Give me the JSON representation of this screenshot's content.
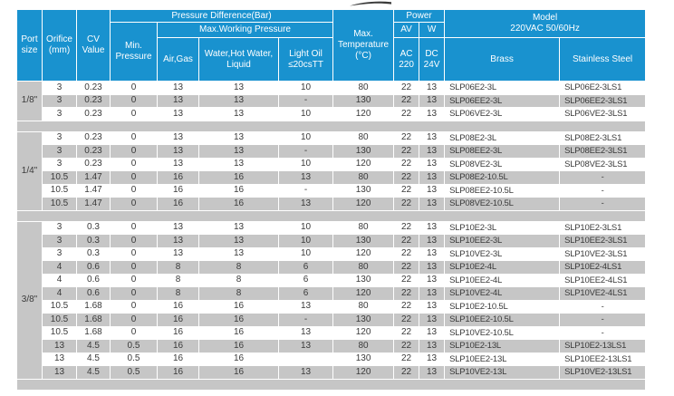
{
  "colors": {
    "header_blue": "#1992cf",
    "stripe_gray": "#c6c6c6",
    "body_text": "#3a3a3a",
    "grid_white": "#ffffff"
  },
  "decoration": {
    "top_partial_graphic": "cropped-logo-swoosh"
  },
  "table": {
    "header": {
      "port_size": "Port\nsize",
      "orifice": "Orifice\n(mm)",
      "cv_value": "CV\nValue",
      "pressure_difference": "Pressure Difference(Bar)",
      "max_working_pressure": "Max.Working Pressure",
      "min_pressure": "Min.\nPressure",
      "air_gas": "Air,Gas",
      "water": "Water,Hot Water,\nLiquid",
      "light_oil": "Light Oil\n≤20csTT",
      "max_temperature": "Max.\nTemperature\n(°C)",
      "power": "Power",
      "power_av": "AV",
      "power_w": "W",
      "ac_220": "AC\n220",
      "dc_24v": "DC\n24V",
      "model": "Model\n220VAC 50/60Hz",
      "brass": "Brass",
      "stainless_steel": "Stainless Steel"
    },
    "groups": [
      {
        "port_size": "1/8\"",
        "rows": [
          {
            "orifice": "3",
            "cv": "0.23",
            "min_pressure": "0",
            "air_gas": "13",
            "water": "13",
            "light_oil": "10",
            "max_temp": "80",
            "ac": "22",
            "dc": "13",
            "brass": "SLP06E2-3L",
            "stainless": "SLP06E2-3LS1"
          },
          {
            "orifice": "3",
            "cv": "0.23",
            "min_pressure": "0",
            "air_gas": "13",
            "water": "13",
            "light_oil": "-",
            "max_temp": "130",
            "ac": "22",
            "dc": "13",
            "brass": "SLP06EE2-3L",
            "stainless": "SLP06EE2-3LS1"
          },
          {
            "orifice": "3",
            "cv": "0.23",
            "min_pressure": "0",
            "air_gas": "13",
            "water": "13",
            "light_oil": "10",
            "max_temp": "120",
            "ac": "22",
            "dc": "13",
            "brass": "SLP06VE2-3L",
            "stainless": "SLP06VE2-3LS1"
          }
        ]
      },
      {
        "port_size": "1/4\"",
        "rows": [
          {
            "orifice": "3",
            "cv": "0.23",
            "min_pressure": "0",
            "air_gas": "13",
            "water": "13",
            "light_oil": "10",
            "max_temp": "80",
            "ac": "22",
            "dc": "13",
            "brass": "SLP08E2-3L",
            "stainless": "SLP08E2-3LS1"
          },
          {
            "orifice": "3",
            "cv": "0.23",
            "min_pressure": "0",
            "air_gas": "13",
            "water": "13",
            "light_oil": "-",
            "max_temp": "130",
            "ac": "22",
            "dc": "13",
            "brass": "SLP08EE2-3L",
            "stainless": "SLP08EE2-3LS1"
          },
          {
            "orifice": "3",
            "cv": "0.23",
            "min_pressure": "0",
            "air_gas": "13",
            "water": "13",
            "light_oil": "10",
            "max_temp": "120",
            "ac": "22",
            "dc": "13",
            "brass": "SLP08VE2-3L",
            "stainless": "SLP08VE2-3LS1"
          },
          {
            "orifice": "10.5",
            "cv": "1.47",
            "min_pressure": "0",
            "air_gas": "16",
            "water": "16",
            "light_oil": "13",
            "max_temp": "80",
            "ac": "22",
            "dc": "13",
            "brass": "SLP08E2-10.5L",
            "stainless": "-"
          },
          {
            "orifice": "10.5",
            "cv": "1.47",
            "min_pressure": "0",
            "air_gas": "16",
            "water": "16",
            "light_oil": "-",
            "max_temp": "130",
            "ac": "22",
            "dc": "13",
            "brass": "SLP08EE2-10.5L",
            "stainless": "-"
          },
          {
            "orifice": "10.5",
            "cv": "1.47",
            "min_pressure": "0",
            "air_gas": "16",
            "water": "16",
            "light_oil": "13",
            "max_temp": "120",
            "ac": "22",
            "dc": "13",
            "brass": "SLP08VE2-10.5L",
            "stainless": "-"
          }
        ]
      },
      {
        "port_size": "3/8\"",
        "rows": [
          {
            "orifice": "3",
            "cv": "0.3",
            "min_pressure": "0",
            "air_gas": "13",
            "water": "13",
            "light_oil": "10",
            "max_temp": "80",
            "ac": "22",
            "dc": "13",
            "brass": "SLP10E2-3L",
            "stainless": "SLP10E2-3LS1"
          },
          {
            "orifice": "3",
            "cv": "0.3",
            "min_pressure": "0",
            "air_gas": "13",
            "water": "13",
            "light_oil": "10",
            "max_temp": "130",
            "ac": "22",
            "dc": "13",
            "brass": "SLP10EE2-3L",
            "stainless": "SLP10EE2-3LS1"
          },
          {
            "orifice": "3",
            "cv": "0.3",
            "min_pressure": "0",
            "air_gas": "13",
            "water": "13",
            "light_oil": "10",
            "max_temp": "120",
            "ac": "22",
            "dc": "13",
            "brass": "SLP10VE2-3L",
            "stainless": "SLP10VE2-3LS1"
          },
          {
            "orifice": "4",
            "cv": "0.6",
            "min_pressure": "0",
            "air_gas": "8",
            "water": "8",
            "light_oil": "6",
            "max_temp": "80",
            "ac": "22",
            "dc": "13",
            "brass": "SLP10E2-4L",
            "stainless": "SLP10E2-4LS1"
          },
          {
            "orifice": "4",
            "cv": "0.6",
            "min_pressure": "0",
            "air_gas": "8",
            "water": "8",
            "light_oil": "6",
            "max_temp": "130",
            "ac": "22",
            "dc": "13",
            "brass": "SLP10EE2-4L",
            "stainless": "SLP10EE2-4LS1"
          },
          {
            "orifice": "4",
            "cv": "0.6",
            "min_pressure": "0",
            "air_gas": "8",
            "water": "8",
            "light_oil": "6",
            "max_temp": "120",
            "ac": "22",
            "dc": "13",
            "brass": "SLP10VE2-4L",
            "stainless": "SLP10VE2-4LS1"
          },
          {
            "orifice": "10.5",
            "cv": "1.68",
            "min_pressure": "0",
            "air_gas": "16",
            "water": "16",
            "light_oil": "13",
            "max_temp": "80",
            "ac": "22",
            "dc": "13",
            "brass": "SLP10E2-10.5L",
            "stainless": "-"
          },
          {
            "orifice": "10.5",
            "cv": "1.68",
            "min_pressure": "0",
            "air_gas": "16",
            "water": "16",
            "light_oil": "-",
            "max_temp": "130",
            "ac": "22",
            "dc": "13",
            "brass": "SLP10EE2-10.5L",
            "stainless": "-"
          },
          {
            "orifice": "10.5",
            "cv": "1.68",
            "min_pressure": "0",
            "air_gas": "16",
            "water": "16",
            "light_oil": "13",
            "max_temp": "120",
            "ac": "22",
            "dc": "13",
            "brass": "SLP10VE2-10.5L",
            "stainless": "-"
          },
          {
            "orifice": "13",
            "cv": "4.5",
            "min_pressure": "0.5",
            "air_gas": "16",
            "water": "16",
            "light_oil": "13",
            "max_temp": "80",
            "ac": "22",
            "dc": "13",
            "brass": "SLP10E2-13L",
            "stainless": "SLP10E2-13LS1"
          },
          {
            "orifice": "13",
            "cv": "4.5",
            "min_pressure": "0.5",
            "air_gas": "16",
            "water": "16",
            "light_oil": "",
            "max_temp": "130",
            "ac": "22",
            "dc": "13",
            "brass": "SLP10EE2-13L",
            "stainless": "SLP10EE2-13LS1"
          },
          {
            "orifice": "13",
            "cv": "4.5",
            "min_pressure": "0.5",
            "air_gas": "16",
            "water": "16",
            "light_oil": "13",
            "max_temp": "120",
            "ac": "22",
            "dc": "13",
            "brass": "SLP10VE2-13L",
            "stainless": "SLP10VE2-13LS1"
          }
        ]
      }
    ]
  }
}
